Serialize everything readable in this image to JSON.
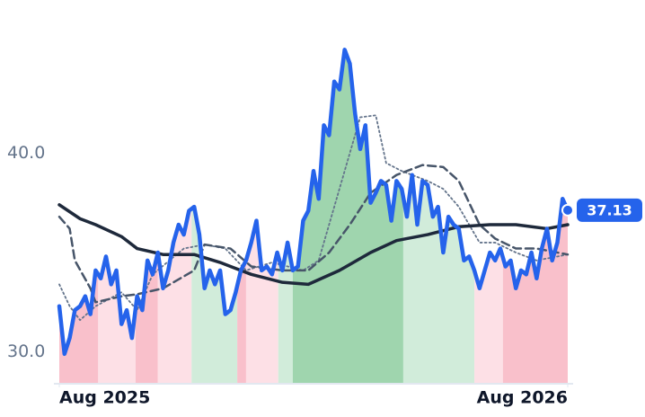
{
  "chart_data": {
    "type": "line",
    "xlim": [
      0,
      98
    ],
    "ylim": [
      28.4,
      47.7
    ],
    "yticks": [
      {
        "value": 30,
        "label": "30.0"
      },
      {
        "value": 40,
        "label": "40.0"
      }
    ],
    "xticks": [
      {
        "value": 0,
        "label": "Aug 2025"
      },
      {
        "value": 98,
        "label": "Aug 2026"
      }
    ],
    "series": [
      {
        "color": "#2563eb",
        "values": [
          32.3,
          29.9,
          30.7,
          32.1,
          32.3,
          32.8,
          31.9,
          34.1,
          33.7,
          34.8,
          33.4,
          34.1,
          31.4,
          32.1,
          30.7,
          32.8,
          32.1,
          34.6,
          33.9,
          35.0,
          33.2,
          34.1,
          35.5,
          36.4,
          35.9,
          37.1,
          37.3,
          35.9,
          33.2,
          34.1,
          33.4,
          34.1,
          31.9,
          32.1,
          33.0,
          34.1,
          34.6,
          35.5,
          36.6,
          34.1,
          34.3,
          33.9,
          35.0,
          34.1,
          35.5,
          34.1,
          34.3,
          36.6,
          37.1,
          39.1,
          37.7,
          41.4,
          40.9,
          43.6,
          43.2,
          45.2,
          44.5,
          42.0,
          40.2,
          41.4,
          37.5,
          38.0,
          38.6,
          38.4,
          36.6,
          38.6,
          38.2,
          36.8,
          38.9,
          36.4,
          38.6,
          38.4,
          36.8,
          37.3,
          35.0,
          36.8,
          36.4,
          36.2,
          34.6,
          34.8,
          34.1,
          33.2,
          34.1,
          35.0,
          34.6,
          35.2,
          34.3,
          34.6,
          33.2,
          34.1,
          33.9,
          35.0,
          33.7,
          35.2,
          36.2,
          34.6,
          35.5,
          37.7,
          37.13
        ]
      },
      {
        "color": "#1e293b",
        "style": "solid",
        "x": [
          0,
          4,
          7,
          12,
          15,
          20,
          26,
          31,
          37,
          43,
          48,
          54,
          60,
          65,
          71,
          77,
          83,
          88,
          94,
          98
        ],
        "values": [
          37.4,
          36.7,
          36.4,
          35.8,
          35.2,
          34.9,
          34.9,
          34.5,
          33.9,
          33.5,
          33.4,
          34.1,
          35.0,
          35.6,
          35.9,
          36.3,
          36.4,
          36.4,
          36.2,
          36.4
        ]
      },
      {
        "color": "#475569",
        "style": "dashed",
        "x": [
          0,
          2,
          3,
          6,
          7,
          12,
          15,
          20,
          26,
          28,
          33,
          37,
          43,
          48,
          52,
          56,
          60,
          65,
          70,
          74,
          77,
          81,
          84,
          88,
          92,
          98
        ],
        "values": [
          36.8,
          36.2,
          34.6,
          33.2,
          32.5,
          32.8,
          32.9,
          33.2,
          34.1,
          35.4,
          35.2,
          34.3,
          34.1,
          34.1,
          35.0,
          36.4,
          38.0,
          38.9,
          39.4,
          39.3,
          38.6,
          36.4,
          35.7,
          35.2,
          35.2,
          34.9
        ]
      },
      {
        "color": "#64748b",
        "style": "dotted",
        "x": [
          0,
          2,
          4,
          7,
          12,
          15,
          18,
          24,
          28,
          32,
          36,
          41,
          47,
          50,
          54,
          58,
          61,
          63,
          66,
          71,
          74,
          77,
          81,
          84,
          88,
          92,
          98
        ],
        "values": [
          33.4,
          32.3,
          31.6,
          32.3,
          33.0,
          32.1,
          33.9,
          35.2,
          35.4,
          35.2,
          34.1,
          34.5,
          34.1,
          34.6,
          38.2,
          41.8,
          41.9,
          39.5,
          39.1,
          38.6,
          38.2,
          37.3,
          35.5,
          35.5,
          35.0,
          34.6,
          34.9
        ]
      }
    ],
    "bands": [
      {
        "from": 0,
        "to": 7.5,
        "color": "#f9c0cb"
      },
      {
        "from": 7.5,
        "to": 14.7,
        "color": "#fde0e6"
      },
      {
        "from": 14.7,
        "to": 19,
        "color": "#f9c0cb"
      },
      {
        "from": 19,
        "to": 25.5,
        "color": "#fde0e6"
      },
      {
        "from": 25.5,
        "to": 34.3,
        "color": "#d1ecda"
      },
      {
        "from": 34.3,
        "to": 36,
        "color": "#f9c0cb"
      },
      {
        "from": 36,
        "to": 42.2,
        "color": "#fde0e6"
      },
      {
        "from": 42.2,
        "to": 45,
        "color": "#d1ecda"
      },
      {
        "from": 45,
        "to": 66.3,
        "color": "#9fd5ae"
      },
      {
        "from": 66.3,
        "to": 80,
        "color": "#d1ecda"
      },
      {
        "from": 80,
        "to": 85.5,
        "color": "#fde0e6"
      },
      {
        "from": 85.5,
        "to": 98,
        "color": "#f9c0cb"
      }
    ]
  }
}
